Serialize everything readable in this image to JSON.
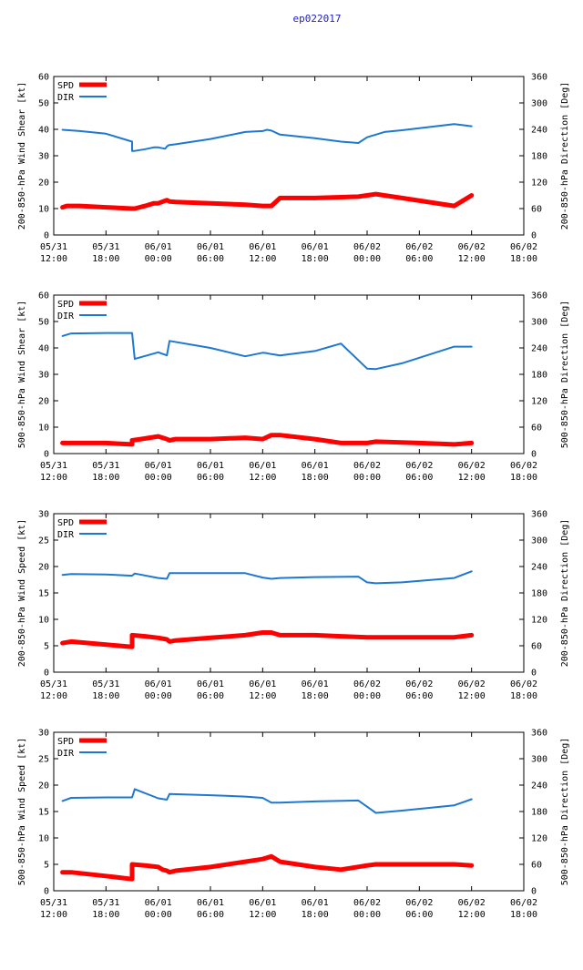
{
  "page_title": "ep022017",
  "colors": {
    "spd": "#ff0000",
    "dir": "#1e78d2",
    "title": "#2020c8",
    "axis": "#000000",
    "grid": "#aaaaaa"
  },
  "x_ticks": [
    {
      "hour": 0,
      "line1": "05/31",
      "line2": "12:00"
    },
    {
      "hour": 6,
      "line1": "05/31",
      "line2": "18:00"
    },
    {
      "hour": 12,
      "line1": "06/01",
      "line2": "00:00"
    },
    {
      "hour": 18,
      "line1": "06/01",
      "line2": "06:00"
    },
    {
      "hour": 24,
      "line1": "06/01",
      "line2": "12:00"
    },
    {
      "hour": 30,
      "line1": "06/01",
      "line2": "18:00"
    },
    {
      "hour": 36,
      "line1": "06/02",
      "line2": "00:00"
    },
    {
      "hour": 42,
      "line1": "06/02",
      "line2": "06:00"
    },
    {
      "hour": 48,
      "line1": "06/02",
      "line2": "12:00"
    },
    {
      "hour": 54,
      "line1": "06/02",
      "line2": "18:00"
    }
  ],
  "chart_data": [
    {
      "type": "line",
      "ylabel": "200-850-hPa Wind Shear [kt]",
      "y2label": "200-850-hPa Direction [Deg]",
      "xlim": [
        0,
        54
      ],
      "ylim": [
        0,
        60
      ],
      "y2lim": [
        0,
        360
      ],
      "yticks": [
        0,
        10,
        20,
        30,
        40,
        50,
        60
      ],
      "y2ticks": [
        0,
        60,
        120,
        180,
        240,
        300,
        360
      ],
      "legend_position": "top-left",
      "series": [
        {
          "name": "SPD",
          "axis": "left",
          "x": [
            1,
            1.5,
            3,
            6,
            9,
            9.3,
            10.5,
            11.5,
            12,
            13,
            13.3,
            14,
            18,
            22,
            24,
            25,
            26,
            30,
            35,
            36,
            37,
            40,
            46,
            48
          ],
          "y": [
            10.5,
            11,
            11,
            10.5,
            10,
            10,
            11,
            12,
            12,
            13.2,
            12.7,
            12.5,
            12,
            11.5,
            11,
            11,
            14,
            14,
            14.5,
            15,
            15.5,
            14,
            11,
            15
          ]
        },
        {
          "name": "DIR",
          "axis": "right",
          "x": [
            1,
            3,
            6,
            9,
            9,
            9.3,
            10.5,
            11.5,
            12,
            12.8,
            13,
            13.2,
            14,
            18,
            22,
            24,
            24.5,
            25,
            26,
            30,
            33,
            35,
            36,
            38,
            40,
            46,
            48
          ],
          "y": [
            239,
            236,
            230,
            212,
            191,
            191,
            195,
            199,
            199,
            196,
            201,
            204,
            206,
            218,
            234,
            236,
            239,
            237,
            228,
            220,
            212,
            209,
            222,
            234,
            238,
            252,
            247
          ]
        }
      ]
    },
    {
      "type": "line",
      "ylabel": "500-850-hPa Wind Shear [kt]",
      "y2label": "500-850-hPa Direction [Deg]",
      "xlim": [
        0,
        54
      ],
      "ylim": [
        0,
        60
      ],
      "y2lim": [
        0,
        360
      ],
      "yticks": [
        0,
        10,
        20,
        30,
        40,
        50,
        60
      ],
      "y2ticks": [
        0,
        60,
        120,
        180,
        240,
        300,
        360
      ],
      "legend_position": "top-left",
      "series": [
        {
          "name": "SPD",
          "axis": "left",
          "x": [
            1,
            2,
            6,
            9,
            9,
            10,
            12,
            13,
            13.3,
            14,
            18,
            22,
            24,
            25,
            26,
            30,
            33,
            36,
            37,
            42,
            46,
            48
          ],
          "y": [
            4,
            4,
            4,
            3.5,
            5,
            5.5,
            6.5,
            5.5,
            5,
            5.5,
            5.5,
            6,
            5.5,
            7,
            7,
            5.5,
            4,
            4,
            4.5,
            4,
            3.5,
            4
          ]
        },
        {
          "name": "DIR",
          "axis": "right",
          "x": [
            1,
            2,
            6,
            9,
            9.3,
            12,
            13,
            13.3,
            18,
            22,
            24,
            24.5,
            25,
            26,
            30,
            33,
            36,
            37,
            40,
            46,
            48
          ],
          "y": [
            267,
            273,
            274,
            274,
            215,
            230,
            223,
            256,
            240,
            221,
            229,
            228,
            226,
            223,
            233,
            250,
            193,
            192,
            205,
            243,
            243
          ]
        }
      ]
    },
    {
      "type": "line",
      "ylabel": "200-850-hPa Wind Speed [kt]",
      "y2label": "200-850-hPa Direction [Deg]",
      "xlim": [
        0,
        54
      ],
      "ylim": [
        0,
        30
      ],
      "y2lim": [
        0,
        360
      ],
      "yticks": [
        0,
        5,
        10,
        15,
        20,
        25,
        30
      ],
      "y2ticks": [
        0,
        60,
        120,
        180,
        240,
        300,
        360
      ],
      "legend_position": "top-left",
      "series": [
        {
          "name": "SPD",
          "axis": "left",
          "x": [
            1,
            2,
            6,
            9,
            9,
            10.5,
            12,
            13,
            13.3,
            14,
            18,
            22,
            24,
            25,
            26,
            30,
            33,
            36,
            37,
            40,
            46,
            48
          ],
          "y": [
            5.5,
            5.8,
            5.2,
            4.8,
            7,
            6.8,
            6.5,
            6.2,
            5.8,
            6,
            6.5,
            7,
            7.5,
            7.5,
            7,
            7,
            6.8,
            6.6,
            6.6,
            6.6,
            6.6,
            7
          ]
        },
        {
          "name": "DIR",
          "axis": "right",
          "x": [
            1,
            2,
            6,
            9,
            9.3,
            12,
            13,
            13.3,
            18,
            22,
            24,
            25,
            26,
            30,
            35,
            36,
            37,
            40,
            46,
            48
          ],
          "y": [
            221,
            223,
            222,
            219,
            224,
            214,
            212,
            225,
            225,
            225,
            215,
            212,
            214,
            216,
            217,
            204,
            202,
            204,
            214,
            229
          ]
        }
      ]
    },
    {
      "type": "line",
      "ylabel": "500-850-hPa Wind Speed [kt]",
      "y2label": "500-850-hPa Direction [Deg]",
      "xlim": [
        0,
        54
      ],
      "ylim": [
        0,
        30
      ],
      "y2lim": [
        0,
        360
      ],
      "yticks": [
        0,
        5,
        10,
        15,
        20,
        25,
        30
      ],
      "y2ticks": [
        0,
        60,
        120,
        180,
        240,
        300,
        360
      ],
      "legend_position": "top-left",
      "series": [
        {
          "name": "SPD",
          "axis": "left",
          "x": [
            1,
            2,
            6,
            9,
            9,
            10.5,
            12,
            12.5,
            13,
            13.3,
            14,
            18,
            22,
            24,
            25,
            26,
            30,
            33,
            36,
            37,
            42,
            46,
            48
          ],
          "y": [
            3.5,
            3.5,
            2.8,
            2.2,
            5,
            4.8,
            4.5,
            4,
            3.8,
            3.5,
            3.8,
            4.5,
            5.5,
            6,
            6.5,
            5.5,
            4.5,
            4,
            4.8,
            5,
            5,
            5,
            4.8
          ]
        },
        {
          "name": "DIR",
          "axis": "right",
          "x": [
            1,
            2,
            6,
            9,
            9.3,
            12,
            13,
            13.3,
            18,
            22,
            24,
            25,
            26,
            30,
            35,
            36,
            37,
            40,
            46,
            48
          ],
          "y": [
            204,
            211,
            212,
            212,
            231,
            210,
            207,
            220,
            217,
            214,
            211,
            200,
            200,
            203,
            205,
            191,
            177,
            182,
            194,
            208
          ]
        }
      ]
    }
  ]
}
